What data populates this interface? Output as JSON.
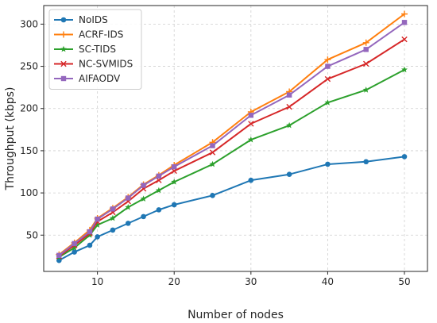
{
  "chart_data": {
    "type": "line",
    "title": "",
    "xlabel": "Number of nodes",
    "ylabel": "Throughput (kbps)",
    "x": [
      5,
      7,
      9,
      10,
      12,
      14,
      16,
      18,
      20,
      25,
      30,
      35,
      40,
      45,
      50
    ],
    "xlim": [
      3,
      53
    ],
    "ylim": [
      7,
      322
    ],
    "xticks": [
      10,
      20,
      30,
      40,
      50
    ],
    "yticks": [
      50,
      100,
      150,
      200,
      250,
      300
    ],
    "grid": true,
    "legend": "top-left",
    "series": [
      {
        "name": "NoIDS",
        "color": "#1f77b4",
        "marker": "circle",
        "values": [
          20,
          30,
          38,
          48,
          56,
          64,
          72,
          80,
          86,
          97,
          115,
          122,
          134,
          137,
          143
        ]
      },
      {
        "name": "ACRF-IDS",
        "color": "#ff7f0e",
        "marker": "plus",
        "values": [
          27,
          41,
          56,
          70,
          82,
          95,
          110,
          121,
          133,
          160,
          196,
          220,
          258,
          278,
          312
        ]
      },
      {
        "name": "SC-TIDS",
        "color": "#2ca02c",
        "marker": "star",
        "values": [
          24,
          35,
          50,
          62,
          70,
          83,
          93,
          103,
          113,
          134,
          163,
          180,
          207,
          222,
          246
        ]
      },
      {
        "name": "NC-SVMIDS",
        "color": "#d62728",
        "marker": "x",
        "values": [
          25,
          38,
          52,
          66,
          77,
          90,
          105,
          115,
          126,
          148,
          182,
          202,
          235,
          253,
          282
        ]
      },
      {
        "name": "AIFAODV",
        "color": "#9467bd",
        "marker": "square",
        "values": [
          26,
          40,
          54,
          69,
          81,
          94,
          109,
          120,
          131,
          156,
          192,
          216,
          250,
          270,
          302
        ]
      }
    ]
  }
}
